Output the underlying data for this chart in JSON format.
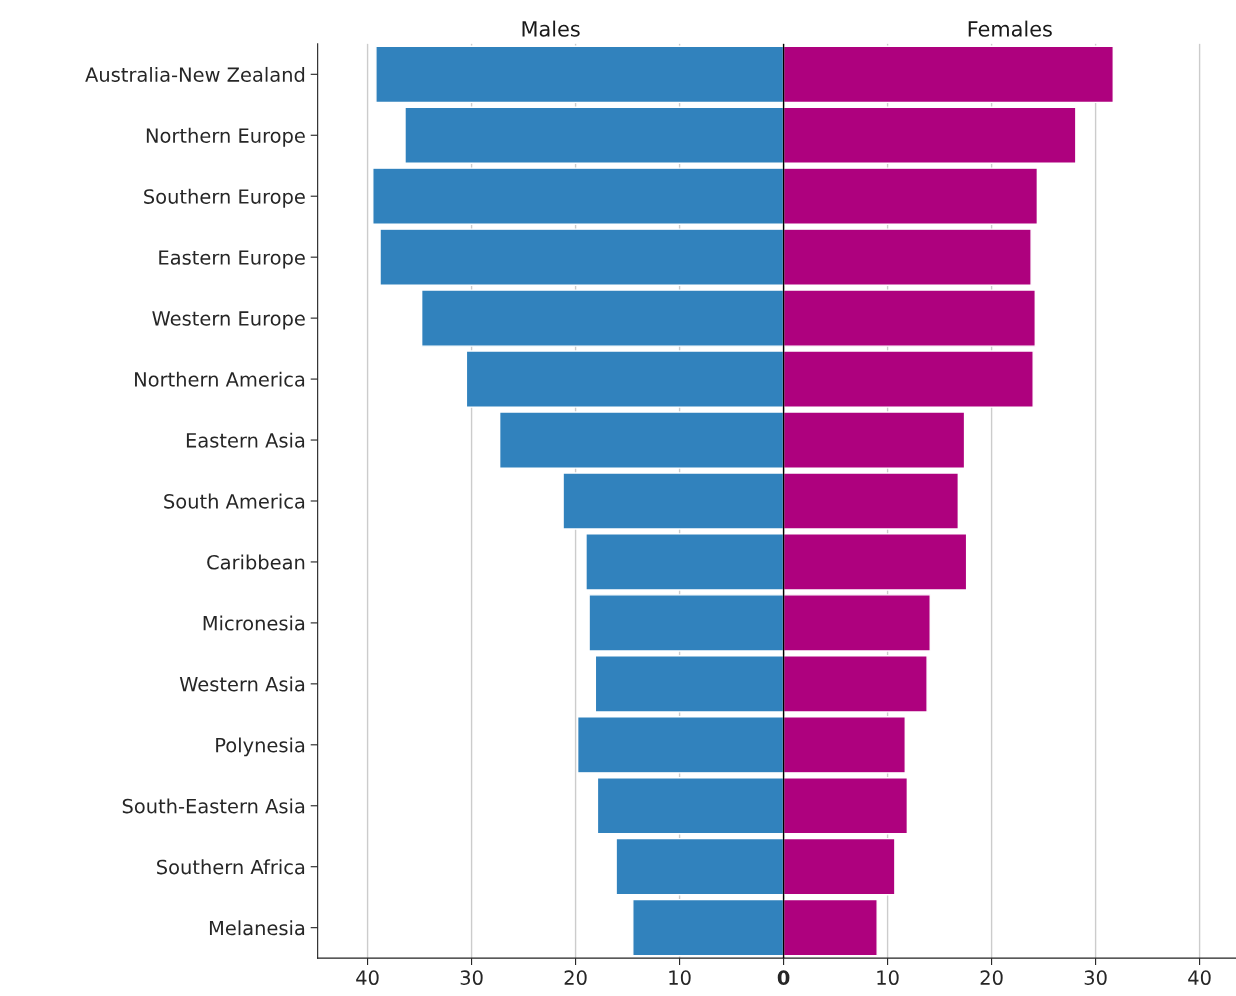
{
  "chart_data": {
    "type": "bar",
    "orientation": "horizontal",
    "stacked": true,
    "categories": [
      "Australia-New Zealand",
      "Northern Europe",
      "Southern Europe",
      "Eastern Europe",
      "Western Europe",
      "Northern America",
      "Eastern Asia",
      "South America",
      "Caribbean",
      "Micronesia",
      "Western Asia",
      "Polynesia",
      "South-Eastern Asia",
      "Southern Africa",
      "Melanesia"
    ],
    "series": [
      {
        "name": "Males",
        "color": "#3182bd",
        "values": [
          -39.2,
          -36.4,
          -39.5,
          -38.8,
          -34.8,
          -30.5,
          -27.3,
          -21.2,
          -19.0,
          -18.7,
          -18.1,
          -19.8,
          -17.9,
          -16.1,
          -14.5
        ]
      },
      {
        "name": "Females",
        "color": "#ae017e",
        "values": [
          31.7,
          28.1,
          24.4,
          23.8,
          24.2,
          24.0,
          17.4,
          16.8,
          17.6,
          14.1,
          13.8,
          11.7,
          11.9,
          10.7,
          9.0
        ]
      }
    ],
    "xlim": [
      -44.8,
      43.5
    ],
    "xticks": [
      {
        "value": -40,
        "label": "40"
      },
      {
        "value": -30,
        "label": "30"
      },
      {
        "value": -20,
        "label": "20"
      },
      {
        "value": -10,
        "label": "10"
      },
      0,
      10,
      20,
      30,
      40
    ],
    "ref_lines": [
      {
        "axis": "x",
        "value": 0,
        "color": "#000000"
      }
    ],
    "grid": "x",
    "legend": false
  }
}
